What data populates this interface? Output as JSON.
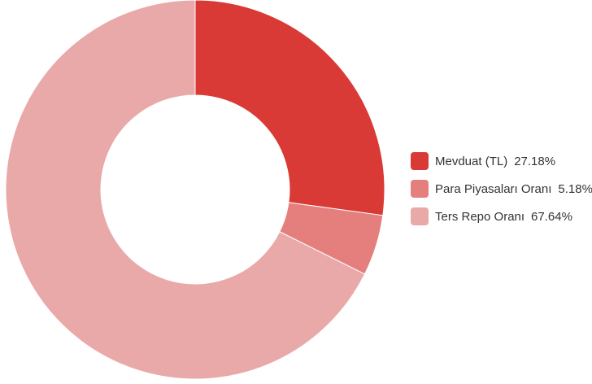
{
  "chart_data": {
    "type": "pie",
    "donut": true,
    "legend_position": "right",
    "slices": [
      {
        "label": "Mevduat (TL)",
        "value": 27.18,
        "display": "27.18%",
        "color": "#d93a35"
      },
      {
        "label": "Para Piyasaları Oranı",
        "value": 5.18,
        "display": "5.18%",
        "color": "#e57f7e"
      },
      {
        "label": "Ters Repo Oranı",
        "value": 67.64,
        "display": "67.64%",
        "color": "#eaa9a9"
      }
    ]
  }
}
